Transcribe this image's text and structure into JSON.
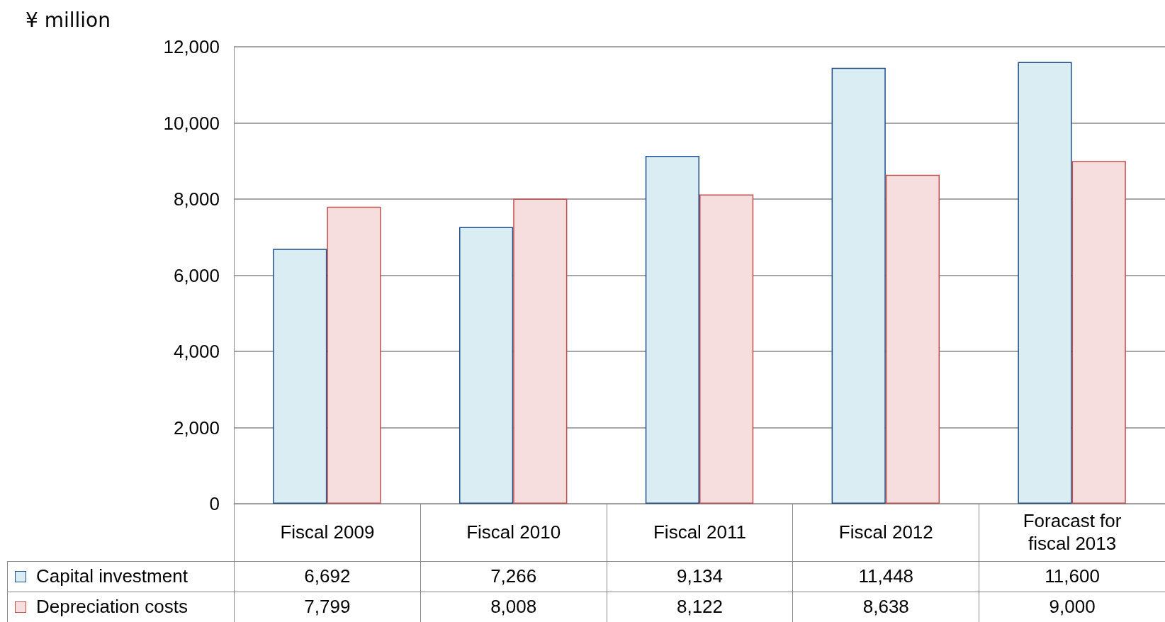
{
  "chart_data": {
    "type": "bar",
    "ylabel": "¥ million",
    "categories": [
      "Fiscal 2009",
      "Fiscal 2010",
      "Fiscal 2011",
      "Fiscal 2012",
      "Foracast for fiscal 2013"
    ],
    "series": [
      {
        "name": "Capital investment",
        "color": "#daedf3",
        "values": [
          6692,
          7266,
          9134,
          11448,
          11600
        ],
        "value_labels": [
          "6,692",
          "7,266",
          "9,134",
          "11,448",
          "11,600"
        ]
      },
      {
        "name": "Depreciation costs",
        "color": "#f6dede",
        "values": [
          7799,
          8008,
          8122,
          8638,
          9000
        ],
        "value_labels": [
          "7,799",
          "8,008",
          "8,122",
          "8,638",
          "9,000"
        ]
      }
    ],
    "ylim": [
      0,
      12000
    ],
    "yticks": [
      0,
      {
        "value": 2000,
        "label": "2,000"
      },
      {
        "value": 4000,
        "label": "4,000"
      },
      {
        "value": 6000,
        "label": "6,000"
      },
      {
        "value": 8000,
        "label": "8,000"
      },
      {
        "value": 10000,
        "label": "10,000"
      },
      {
        "value": 12000,
        "label": "12,000"
      }
    ],
    "grid": "y",
    "legend": "bottom left"
  }
}
